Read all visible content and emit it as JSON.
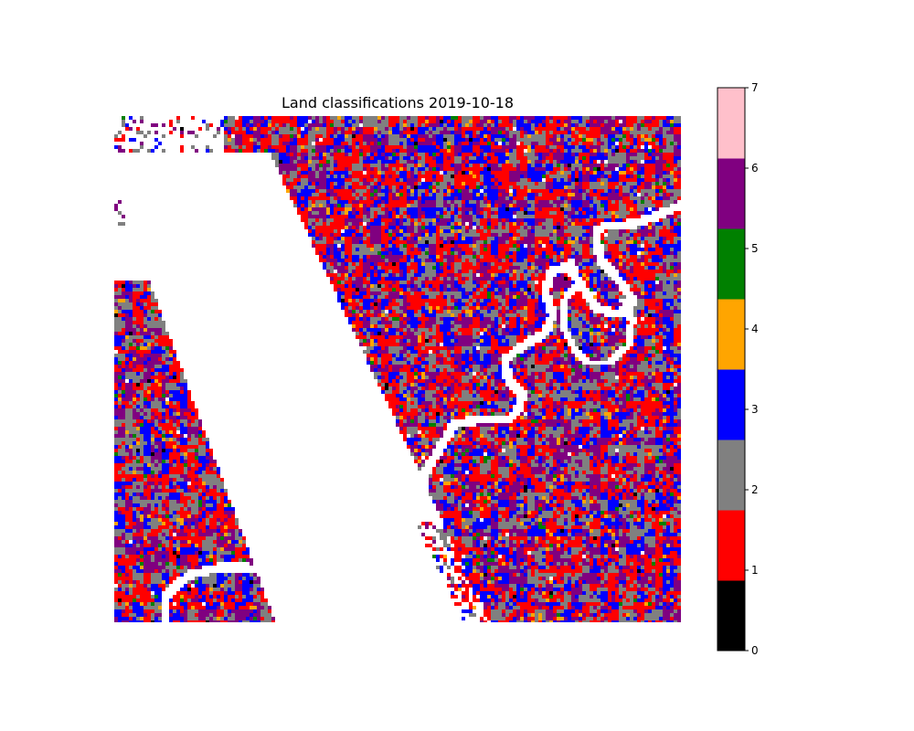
{
  "chart_data": {
    "type": "heatmap",
    "title": "Land classifications 2019-10-18",
    "xlabel": "",
    "ylabel": "",
    "axes_visible": false,
    "colorbar": {
      "position": "right",
      "classes": [
        0,
        1,
        2,
        3,
        4,
        5,
        6,
        7
      ],
      "colors": [
        "#000000",
        "#ff0000",
        "#808080",
        "#0000ff",
        "#ffa500",
        "#008000",
        "#800080",
        "#ffc0cb"
      ],
      "tick_labels": [
        "0",
        "1",
        "2",
        "3",
        "4",
        "5",
        "6",
        "7"
      ],
      "range": [
        0,
        7
      ]
    },
    "dominant_classes": [
      1,
      2,
      3,
      6
    ],
    "no_data_color": "#ffffff"
  }
}
